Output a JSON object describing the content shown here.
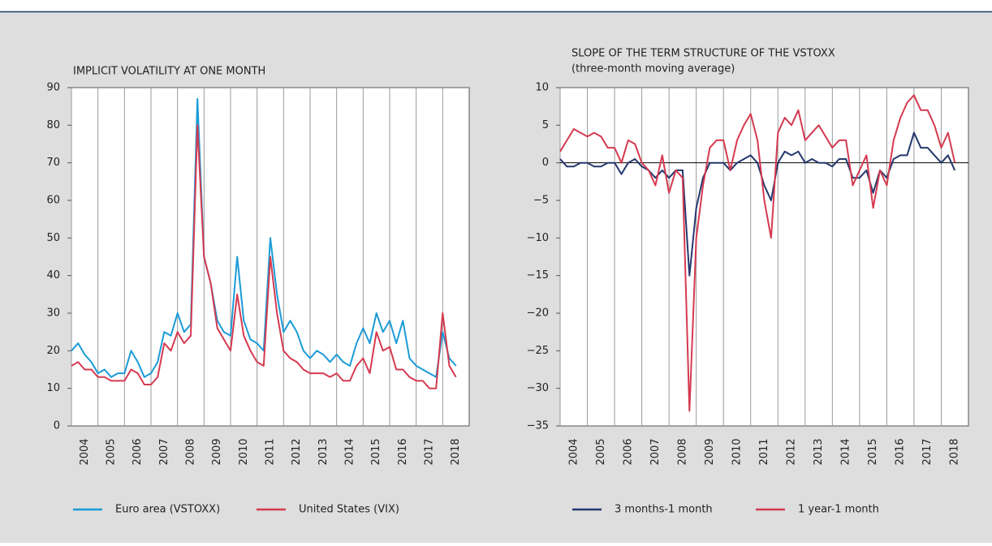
{
  "chart_data": [
    {
      "type": "line",
      "title": "IMPLICIT VOLATILITY AT ONE MONTH",
      "x": [
        2004.0,
        2004.25,
        2004.5,
        2004.75,
        2005.0,
        2005.25,
        2005.5,
        2005.75,
        2006.0,
        2006.25,
        2006.5,
        2006.75,
        2007.0,
        2007.25,
        2007.5,
        2007.75,
        2008.0,
        2008.25,
        2008.5,
        2008.75,
        2009.0,
        2009.25,
        2009.5,
        2009.75,
        2010.0,
        2010.25,
        2010.5,
        2010.75,
        2011.0,
        2011.25,
        2011.5,
        2011.75,
        2012.0,
        2012.25,
        2012.5,
        2012.75,
        2013.0,
        2013.25,
        2013.5,
        2013.75,
        2014.0,
        2014.25,
        2014.5,
        2014.75,
        2015.0,
        2015.25,
        2015.5,
        2015.75,
        2016.0,
        2016.25,
        2016.5,
        2016.75,
        2017.0,
        2017.25,
        2017.5,
        2017.75,
        2018.0,
        2018.25,
        2018.5
      ],
      "series": [
        {
          "name": "Euro area (VSTOXX)",
          "color": "#1b9bd7",
          "values": [
            20,
            22,
            19,
            17,
            14,
            15,
            13,
            14,
            14,
            20,
            17,
            13,
            14,
            17,
            25,
            24,
            30,
            25,
            27,
            87,
            45,
            38,
            28,
            25,
            24,
            45,
            28,
            23,
            22,
            20,
            50,
            35,
            25,
            28,
            25,
            20,
            18,
            20,
            19,
            17,
            19,
            17,
            16,
            22,
            26,
            22,
            30,
            25,
            28,
            22,
            28,
            18,
            16,
            15,
            14,
            13,
            25,
            18,
            16
          ]
        },
        {
          "name": "United States (VIX)",
          "color": "#d53a50",
          "values": [
            16,
            17,
            15,
            15,
            13,
            13,
            12,
            12,
            12,
            15,
            14,
            11,
            11,
            13,
            22,
            20,
            25,
            22,
            24,
            80,
            45,
            38,
            26,
            23,
            20,
            35,
            24,
            20,
            17,
            16,
            45,
            30,
            20,
            18,
            17,
            15,
            14,
            14,
            14,
            13,
            14,
            12,
            12,
            16,
            18,
            14,
            25,
            20,
            21,
            15,
            15,
            13,
            12,
            12,
            10,
            10,
            30,
            16,
            13
          ]
        }
      ],
      "xlim": [
        2004,
        2019
      ],
      "xticks": [
        {
          "value": 2004,
          "label": "2004"
        },
        {
          "value": 2005,
          "label": "2005"
        },
        {
          "value": 2006,
          "label": "2006"
        },
        {
          "value": 2007,
          "label": "2007"
        },
        {
          "value": 2008,
          "label": "2008"
        },
        {
          "value": 2009,
          "label": "2009"
        },
        {
          "value": 2010,
          "label": "2010"
        },
        {
          "value": 2011,
          "label": "2011"
        },
        {
          "value": 2012,
          "label": "2012"
        },
        {
          "value": 2013,
          "label": "2013"
        },
        {
          "value": 2014,
          "label": "2014"
        },
        {
          "value": 2015,
          "label": "2015"
        },
        {
          "value": 2016,
          "label": "2016"
        },
        {
          "value": 2017,
          "label": "2017"
        },
        {
          "value": 2018,
          "label": "2018"
        }
      ],
      "ylim": [
        0,
        90
      ],
      "yticks": [
        0,
        10,
        20,
        30,
        40,
        50,
        60,
        70,
        80,
        90
      ],
      "zero_line": false
    },
    {
      "type": "line",
      "title": "SLOPE OF THE TERM STRUCTURE OF THE VSTOXX",
      "subtitle": "(three-month moving average)",
      "x": [
        2004.0,
        2004.25,
        2004.5,
        2004.75,
        2005.0,
        2005.25,
        2005.5,
        2005.75,
        2006.0,
        2006.25,
        2006.5,
        2006.75,
        2007.0,
        2007.25,
        2007.5,
        2007.75,
        2008.0,
        2008.25,
        2008.5,
        2008.75,
        2009.0,
        2009.25,
        2009.5,
        2009.75,
        2010.0,
        2010.25,
        2010.5,
        2010.75,
        2011.0,
        2011.25,
        2011.5,
        2011.75,
        2012.0,
        2012.25,
        2012.5,
        2012.75,
        2013.0,
        2013.25,
        2013.5,
        2013.75,
        2014.0,
        2014.25,
        2014.5,
        2014.75,
        2015.0,
        2015.25,
        2015.5,
        2015.75,
        2016.0,
        2016.25,
        2016.5,
        2016.75,
        2017.0,
        2017.25,
        2017.5,
        2017.75,
        2018.0,
        2018.25,
        2018.5
      ],
      "series": [
        {
          "name": "3 months-1 month",
          "color": "#24386d",
          "values": [
            0.5,
            -0.5,
            -0.5,
            0,
            0,
            -0.5,
            -0.5,
            0,
            0,
            -1.5,
            0,
            0.5,
            -0.5,
            -1,
            -2,
            -1,
            -2,
            -1,
            -1,
            -15,
            -6,
            -2,
            0,
            0,
            0,
            -1,
            0,
            0.5,
            1,
            0,
            -3,
            -5,
            0,
            1.5,
            1,
            1.5,
            0,
            0.5,
            0,
            0,
            -0.5,
            0.5,
            0.5,
            -2,
            -2,
            -1,
            -4,
            -1,
            -2,
            0.5,
            1,
            1,
            4,
            2,
            2,
            1,
            0,
            1,
            -1
          ]
        },
        {
          "name": "1 year-1 month",
          "color": "#d53a50",
          "values": [
            1.5,
            3,
            4.5,
            4,
            3.5,
            4,
            3.5,
            2,
            2,
            0,
            3,
            2.5,
            0,
            -1,
            -3,
            1,
            -4,
            -1,
            -2,
            -33,
            -10,
            -3,
            2,
            3,
            3,
            -1,
            3,
            5,
            6.5,
            3,
            -5,
            -10,
            4,
            6,
            5,
            7,
            3,
            4,
            5,
            3.5,
            2,
            3,
            3,
            -3,
            -1,
            1,
            -6,
            -1,
            -3,
            3,
            6,
            8,
            9,
            7,
            7,
            5,
            2,
            4,
            0
          ]
        }
      ],
      "xlim": [
        2004,
        2019
      ],
      "xticks": [
        {
          "value": 2004,
          "label": "2004"
        },
        {
          "value": 2005,
          "label": "2005"
        },
        {
          "value": 2006,
          "label": "2006"
        },
        {
          "value": 2007,
          "label": "2007"
        },
        {
          "value": 2008,
          "label": "2008"
        },
        {
          "value": 2009,
          "label": "2009"
        },
        {
          "value": 2010,
          "label": "2010"
        },
        {
          "value": 2011,
          "label": "2011"
        },
        {
          "value": 2012,
          "label": "2012"
        },
        {
          "value": 2013,
          "label": "2013"
        },
        {
          "value": 2014,
          "label": "2014"
        },
        {
          "value": 2015,
          "label": "2015"
        },
        {
          "value": 2016,
          "label": "2016"
        },
        {
          "value": 2017,
          "label": "2017"
        },
        {
          "value": 2018,
          "label": "2018"
        }
      ],
      "ylim": [
        -35,
        10
      ],
      "yticks": [
        {
          "value": -35,
          "label": "−35"
        },
        {
          "value": -30,
          "label": "−30"
        },
        {
          "value": -25,
          "label": "−25"
        },
        {
          "value": -20,
          "label": "−20"
        },
        {
          "value": -15,
          "label": "−15"
        },
        {
          "value": -10,
          "label": "−10"
        },
        {
          "value": -5,
          "label": "−5"
        },
        0,
        5,
        10
      ],
      "zero_line": true
    }
  ]
}
